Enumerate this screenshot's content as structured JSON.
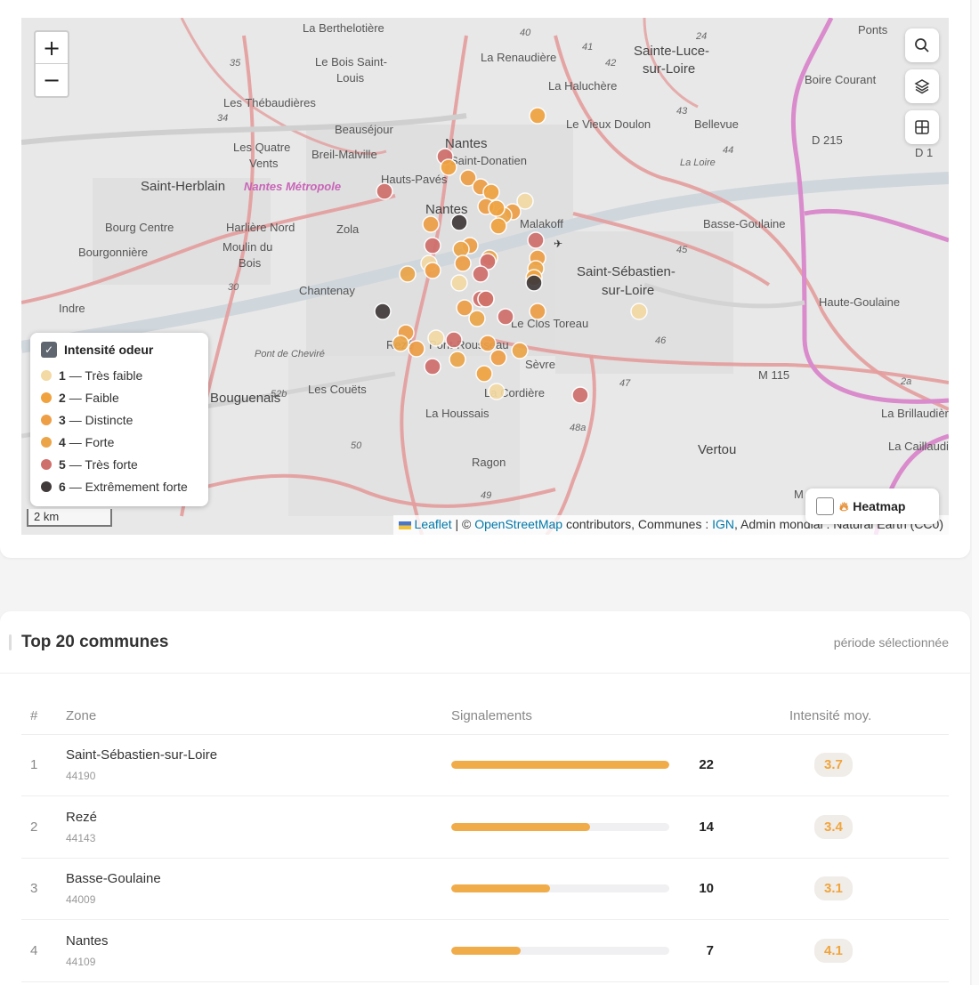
{
  "map": {
    "zoom_in": "+",
    "zoom_out": "−",
    "search_icon": "search-icon",
    "layers_icon": "layers-icon",
    "grid_icon": "grid-icon",
    "scale": "2 km",
    "attribution": {
      "leaflet": "Leaflet",
      "sep1": " | © ",
      "osm": "OpenStreetMap",
      "contributors": " contributors, Communes : ",
      "ign": "IGN",
      "rest": ", Admin mondial : Natural Earth (CC0)"
    },
    "heatmap_label": "Heatmap",
    "labels": {
      "berthelotiere": "La Berthelotière",
      "renaudiere": "La Renaudière",
      "sainte_luce": "Sainte-Luce-",
      "sur_loire": "sur-Loire",
      "ponts": "Ponts",
      "bois_saint": "Le Bois Saint-",
      "louis": "Louis",
      "haluchere": "La Haluchère",
      "boire_courant": "Boire Courant",
      "thebaudieres": "Les Thébaudières",
      "vieux_doulon": "Le Vieux Doulon",
      "bellevue": "Bellevue",
      "beausejour": "Beauséjour",
      "nantes_label": "Nantes",
      "quatre": "Les Quatre",
      "vents": "Vents",
      "breil": "Breil-Malville",
      "donatien": "Saint-Donatien",
      "loire": "La Loire",
      "d215": "D 215",
      "d1": "D 1",
      "saint_herblain": "Saint-Herblain",
      "nantes_metropole": "Nantes Métropole",
      "hauts_paves": "Hauts-Pavés",
      "nantes_city": "Nantes",
      "bourg_centre": "Bourg Centre",
      "harliere": "Harlière Nord",
      "zola": "Zola",
      "malakoff": "Malakoff",
      "basse_goulaine": "Basse-Goulaine",
      "bourgonniere": "Bourgonnière",
      "moulin": "Moulin du",
      "bois": "Bois",
      "saint_sebastien": "Saint-Sébastien-",
      "sur_loire2": "sur-Loire",
      "chantenay": "Chantenay",
      "indre": "Indre",
      "haute_goulaine": "Haute-Goulaine",
      "clos_toreau": "Le Clos Toreau",
      "rive_cheviré": "Pont de Cheviré",
      "reze": "Rezé",
      "pont_rousseau": "Pont-Rousseau",
      "coueets": "Les Couëts",
      "bouguenais": "Bouguenais",
      "sevre": "Sèvre",
      "m115": "M 115",
      "cordiere": "La Cordière",
      "houssais": "La Houssais",
      "brilaudiere": "La Brillaudière",
      "caillaudiere": "La Caillaudière",
      "vertou": "Vertou",
      "ragon": "Ragon",
      "n46": "46",
      "n47": "47",
      "n48a": "48a",
      "n49": "49",
      "n50": "50",
      "n52b": "52b",
      "n2a": "2a",
      "n35": "35",
      "n34": "34",
      "n30": "30",
      "n24": "24",
      "n40": "40",
      "n41": "41",
      "n42": "42",
      "n43": "43",
      "n44": "44",
      "n45": "45",
      "m": "M"
    }
  },
  "legend": {
    "title": "Intensité odeur",
    "items": [
      {
        "num": "1",
        "label": "— Très faible",
        "color": "#f3d9a4"
      },
      {
        "num": "2",
        "label": "— Faible",
        "color": "#f0a23f"
      },
      {
        "num": "3",
        "label": "— Distincte",
        "color": "#ee9e45"
      },
      {
        "num": "4",
        "label": "— Forte",
        "color": "#eba548"
      },
      {
        "num": "5",
        "label": "— Très forte",
        "color": "#cf6f6c"
      },
      {
        "num": "6",
        "label": "— Extrêmement forte",
        "color": "#403a3a"
      }
    ]
  },
  "table": {
    "title": "Top 20 communes",
    "period": "période sélectionnée",
    "headers": {
      "rank": "#",
      "zone": "Zone",
      "signalements": "Signalements",
      "intensite": "Intensité moy."
    },
    "rows": [
      {
        "rank": "1",
        "name": "Saint-Sébastien-sur-Loire",
        "code": "44190",
        "count": 22,
        "count_label": "22",
        "intensity": "3.7"
      },
      {
        "rank": "2",
        "name": "Rezé",
        "code": "44143",
        "count": 14,
        "count_label": "14",
        "intensity": "3.4"
      },
      {
        "rank": "3",
        "name": "Basse-Goulaine",
        "code": "44009",
        "count": 10,
        "count_label": "10",
        "intensity": "3.1"
      },
      {
        "rank": "4",
        "name": "Nantes",
        "code": "44109",
        "count": 7,
        "count_label": "7",
        "intensity": "4.1"
      }
    ],
    "max_count": 22
  }
}
